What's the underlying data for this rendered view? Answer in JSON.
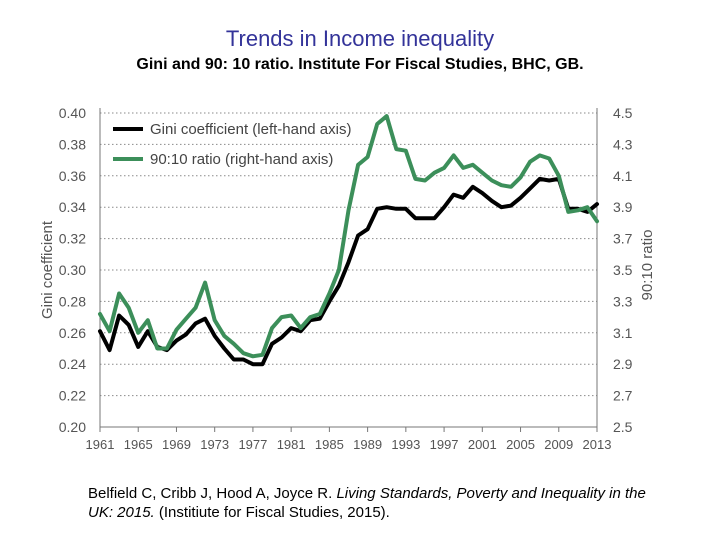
{
  "slide": {
    "title": "Trends in Income inequality",
    "subtitle": "Gini and 90: 10 ratio. Institute For Fiscal Studies, BHC, GB.",
    "citation_authors": "Belfield C, Cribb J, Hood A, Joyce R.",
    "citation_work": "Living Standards, Poverty and Inequality in the UK: 2015.",
    "citation_publisher": "(Institiute for Fiscal Studies, 2015)."
  },
  "chart_data": {
    "type": "line",
    "title": "",
    "xlabel": "",
    "ylabel": "Gini coefficient",
    "y2label": "90:10 ratio",
    "xlim": [
      1961,
      2013
    ],
    "ylim": [
      0.2,
      0.4
    ],
    "y2lim": [
      2.5,
      4.5
    ],
    "x_ticks": [
      "1961",
      "1965",
      "1969",
      "1973",
      "1977",
      "1981",
      "1985",
      "1989",
      "1993",
      "1997",
      "2001",
      "2005",
      "2009",
      "2013"
    ],
    "y_ticks": [
      "0.20",
      "0.22",
      "0.24",
      "0.26",
      "0.28",
      "0.30",
      "0.32",
      "0.34",
      "0.36",
      "0.38",
      "0.40"
    ],
    "y2_ticks": [
      "2.5",
      "2.7",
      "2.9",
      "3.1",
      "3.3",
      "3.5",
      "3.7",
      "3.9",
      "4.1",
      "4.3",
      "4.5"
    ],
    "grid": "horizontal dotted",
    "legend_position": "top-left",
    "x": [
      1961,
      1962,
      1963,
      1964,
      1965,
      1966,
      1967,
      1968,
      1969,
      1970,
      1971,
      1972,
      1973,
      1974,
      1975,
      1976,
      1977,
      1978,
      1979,
      1980,
      1981,
      1982,
      1983,
      1984,
      1985,
      1986,
      1987,
      1988,
      1989,
      1990,
      1991,
      1992,
      1993,
      1994,
      1995,
      1996,
      1997,
      1998,
      1999,
      2000,
      2001,
      2002,
      2003,
      2004,
      2005,
      2006,
      2007,
      2008,
      2009,
      2010,
      2011,
      2012,
      2013
    ],
    "series": [
      {
        "name": "Gini coefficient (left-hand axis)",
        "axis": "left",
        "color": "#000000",
        "values": [
          0.261,
          0.249,
          0.271,
          0.265,
          0.251,
          0.261,
          0.251,
          0.249,
          0.255,
          0.259,
          0.266,
          0.269,
          0.258,
          0.25,
          0.243,
          0.243,
          0.24,
          0.24,
          0.253,
          0.257,
          0.263,
          0.261,
          0.268,
          0.269,
          0.28,
          0.29,
          0.305,
          0.322,
          0.326,
          0.339,
          0.34,
          0.339,
          0.339,
          0.333,
          0.333,
          0.333,
          0.34,
          0.348,
          0.346,
          0.353,
          0.349,
          0.344,
          0.34,
          0.341,
          0.346,
          0.352,
          0.358,
          0.357,
          0.358,
          0.339,
          0.339,
          0.337,
          0.342
        ]
      },
      {
        "name": "90:10 ratio (right-hand axis)",
        "axis": "right",
        "color": "#3c8f5a",
        "values": [
          3.22,
          3.11,
          3.35,
          3.26,
          3.1,
          3.18,
          3.0,
          3.0,
          3.12,
          3.19,
          3.26,
          3.42,
          3.18,
          3.08,
          3.03,
          2.97,
          2.95,
          2.96,
          3.13,
          3.2,
          3.21,
          3.13,
          3.2,
          3.22,
          3.35,
          3.5,
          3.88,
          4.17,
          4.22,
          4.43,
          4.48,
          4.27,
          4.26,
          4.08,
          4.07,
          4.12,
          4.15,
          4.23,
          4.15,
          4.17,
          4.12,
          4.07,
          4.04,
          4.03,
          4.09,
          4.19,
          4.23,
          4.21,
          4.1,
          3.87,
          3.88,
          3.9,
          3.81
        ]
      }
    ]
  }
}
